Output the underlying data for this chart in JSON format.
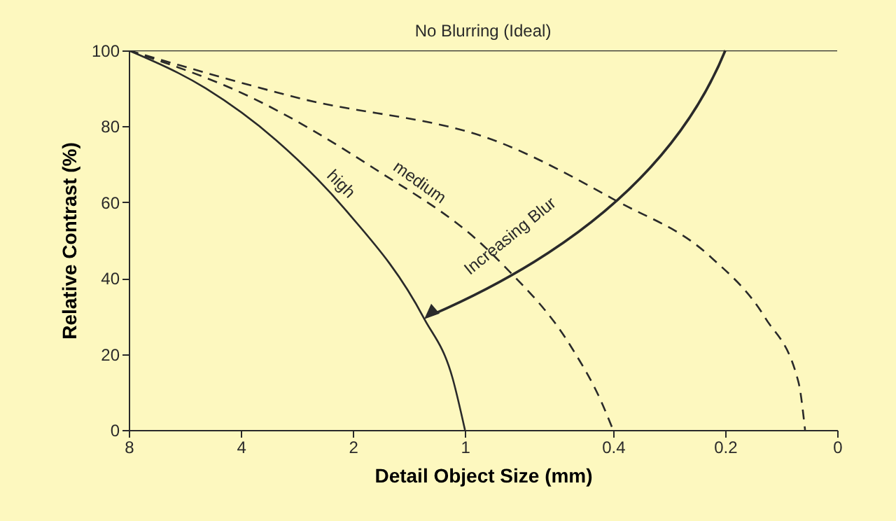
{
  "chart_data": {
    "type": "line",
    "xlabel": "Detail Object Size (mm)",
    "ylabel": "Relative Contrast (%)",
    "log": "x",
    "xlim": [
      8,
      0.1
    ],
    "ylim": [
      0,
      100
    ],
    "xticks": [
      8,
      4,
      2,
      1,
      0.4,
      0.2,
      {
        "value": 0.1,
        "label": "0"
      }
    ],
    "yticks": [
      0,
      20,
      40,
      60,
      80,
      100
    ],
    "grid": false,
    "marker": "none",
    "annotations": [
      "Increasing Blur"
    ],
    "series": [
      {
        "name": "No Blurring (Ideal)",
        "color": "#2a2a2a",
        "line_style": "solid",
        "x": [
          8,
          0.1
        ],
        "values": [
          100,
          100
        ]
      },
      {
        "name": "high",
        "color": "#2a2a2a",
        "line_style": "solid",
        "x": [
          8,
          4.97,
          3.22,
          2.09,
          1.29,
          1.08,
          1
        ],
        "values": [
          100,
          90,
          76.4,
          57.9,
          29.5,
          13.7,
          0
        ]
      },
      {
        "name": "medium",
        "color": "#2a2a2a",
        "line_style": "dashed",
        "x": [
          8,
          3.73,
          1.76,
          0.88,
          0.785,
          0.52,
          0.43,
          0.4
        ],
        "values": [
          100,
          87.5,
          69,
          48,
          43.2,
          22.1,
          7.4,
          0
        ]
      },
      {
        "color": "#2a2a2a",
        "line_style": "dashed",
        "x": [
          8,
          2.81,
          0.785,
          0.394,
          0.22,
          0.156,
          0.127,
          0.122
        ],
        "values": [
          100,
          87.5,
          75.3,
          60.5,
          45.8,
          29.5,
          12.5,
          0
        ]
      }
    ]
  }
}
